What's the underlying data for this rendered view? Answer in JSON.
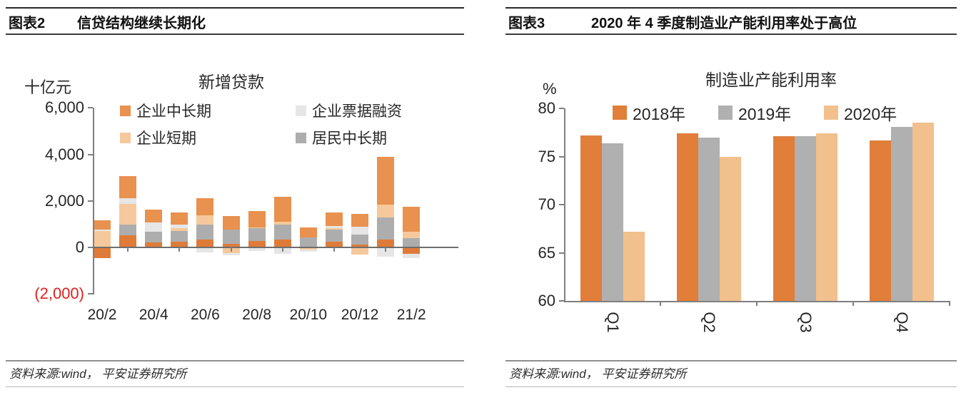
{
  "panels": {
    "left": {
      "header_tag": "图表2",
      "header_title": "信贷结构继续长期化",
      "source_note": "资料来源:wind， 平安证券研究所"
    },
    "right": {
      "header_tag": "图表3",
      "header_title": "2020 年 4 季度制造业产能利用率处于高位",
      "source_note": "资料来源:wind， 平安证券研究所"
    }
  },
  "chart_data": [
    {
      "type": "bar",
      "subtype": "stacked",
      "title": "新增贷款",
      "unit": "十亿元",
      "categories": [
        "20/2",
        "20/3",
        "20/4",
        "20/5",
        "20/6",
        "20/7",
        "20/8",
        "20/9",
        "20/10",
        "20/11",
        "20/12",
        "21/1",
        "21/2"
      ],
      "x_tick_labels": [
        "20/2",
        "20/4",
        "20/6",
        "20/8",
        "20/10",
        "20/12",
        "21/2"
      ],
      "y_ticks": [
        6000,
        4000,
        2000,
        0,
        -2000
      ],
      "y_tick_labels": [
        "6,000",
        "4,000",
        "2,000",
        "0",
        "(2,000)"
      ],
      "ylim": [
        -2000,
        6000
      ],
      "grid": false,
      "negative_tick_color": "#e02020",
      "axis_color": "#7f7f7f",
      "legend_position": "top",
      "legend": [
        {
          "label": "企业中长期",
          "color": "#e9914f"
        },
        {
          "label": "企业票据融资",
          "color": "#e6e6e6"
        },
        {
          "label": "企业短期",
          "color": "#f5c99c"
        },
        {
          "label": "居民中长期",
          "color": "#adadad"
        }
      ],
      "series": [
        {
          "name": "(unlabeled)",
          "color": "#df7b38",
          "values": [
            -450,
            514,
            228,
            238,
            340,
            151,
            284,
            339,
            27,
            249,
            114,
            328,
            -269
          ]
        },
        {
          "name": "居民中长期",
          "color": "#adadad",
          "values": [
            37,
            474,
            439,
            466,
            635,
            607,
            557,
            636,
            406,
            505,
            439,
            945,
            411
          ]
        },
        {
          "name": "企业短期",
          "color": "#f5c99c",
          "values": [
            655,
            875,
            -6,
            121,
            405,
            -242,
            5,
            127,
            -84,
            73,
            -310,
            576,
            250
          ]
        },
        {
          "name": "企业票据融资",
          "color": "#e6e6e6",
          "values": [
            63,
            260,
            391,
            159,
            -210,
            -102,
            -168,
            -263,
            -112,
            80,
            334,
            -408,
            -186
          ]
        },
        {
          "name": "企业中长期",
          "color": "#e9914f",
          "values": [
            416,
            956,
            555,
            530,
            735,
            597,
            725,
            1068,
            411,
            589,
            550,
            2040,
            1100
          ]
        }
      ]
    },
    {
      "type": "bar",
      "subtype": "grouped",
      "title": "制造业产能利用率",
      "unit": "%",
      "categories": [
        "Q1",
        "Q2",
        "Q3",
        "Q4"
      ],
      "y_ticks": [
        80,
        75,
        70,
        65,
        60
      ],
      "y_tick_labels": [
        "80",
        "75",
        "70",
        "65",
        "60"
      ],
      "ylim": [
        60,
        80
      ],
      "grid": false,
      "axis_color": "#7f7f7f",
      "legend_position": "top",
      "series": [
        {
          "name": "2018年",
          "color": "#e07e3a",
          "values": [
            77.2,
            77.4,
            77.1,
            76.7
          ]
        },
        {
          "name": "2019年",
          "color": "#b0b0b0",
          "values": [
            76.4,
            77.0,
            77.1,
            78.1
          ]
        },
        {
          "name": "2020年",
          "color": "#f2c08c",
          "values": [
            67.2,
            75.0,
            77.4,
            78.5
          ]
        }
      ]
    }
  ]
}
